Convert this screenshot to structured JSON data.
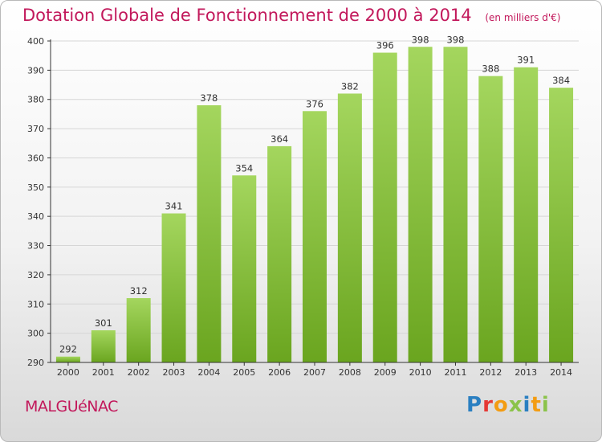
{
  "header": {
    "title": "Dotation Globale de Fonctionnement de 2000 à 2014",
    "unit": "(en milliers d'€)"
  },
  "footer": {
    "commune": "MALGUéNAC",
    "logo_text": "Proxiti",
    "logo_colors": [
      "#2a7fc1",
      "#e53935",
      "#f39c12",
      "#8bc34a",
      "#2a7fc1",
      "#f39c12",
      "#8bc34a"
    ]
  },
  "colors": {
    "title": "#c2185b",
    "bar_top": "#a4d65e",
    "bar_bottom": "#6aa51f",
    "grid": "#d6d6d6",
    "axis": "#333333"
  },
  "chart_data": {
    "type": "bar",
    "categories": [
      "2000",
      "2001",
      "2002",
      "2003",
      "2004",
      "2005",
      "2006",
      "2007",
      "2008",
      "2009",
      "2010",
      "2011",
      "2012",
      "2013",
      "2014"
    ],
    "values": [
      292,
      301,
      312,
      341,
      378,
      354,
      364,
      376,
      382,
      396,
      398,
      398,
      388,
      391,
      384
    ],
    "ylim": [
      290,
      400
    ],
    "yticks": [
      290,
      300,
      310,
      320,
      330,
      340,
      350,
      360,
      370,
      380,
      390,
      400
    ],
    "grid": true,
    "xlabel": "",
    "ylabel": ""
  }
}
